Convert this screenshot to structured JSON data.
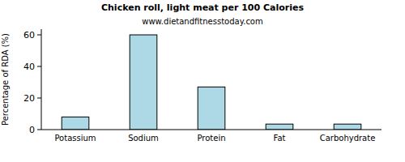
{
  "chart_data": {
    "type": "bar",
    "title": "Chicken roll, light meat per 100 Calories",
    "subtitle": "www.dietandfitnesstoday.com",
    "y_label": "Percentage of RDA (%)",
    "categories": [
      "Potassium",
      "Sodium",
      "Protein",
      "Fat",
      "Carbohydrate"
    ],
    "values": [
      8,
      60,
      27,
      3.5,
      3.5
    ],
    "color": "#add8e6",
    "ylim": [
      0,
      63.6
    ],
    "yticks": [
      0,
      20,
      40,
      60
    ],
    "grid": false
  }
}
